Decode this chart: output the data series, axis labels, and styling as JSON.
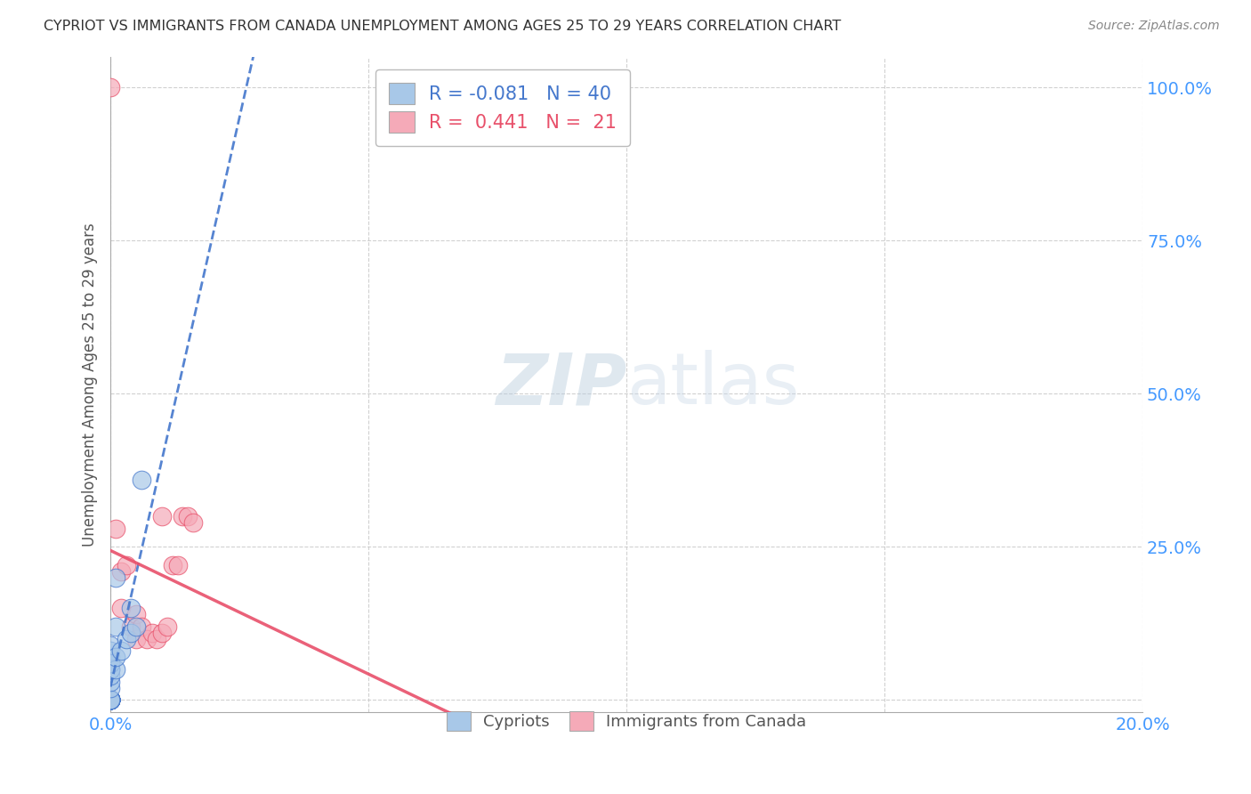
{
  "title": "CYPRIOT VS IMMIGRANTS FROM CANADA UNEMPLOYMENT AMONG AGES 25 TO 29 YEARS CORRELATION CHART",
  "source": "Source: ZipAtlas.com",
  "ylabel": "Unemployment Among Ages 25 to 29 years",
  "xlim": [
    0.0,
    0.2
  ],
  "ylim": [
    -0.02,
    1.05
  ],
  "x_ticks": [
    0.0,
    0.05,
    0.1,
    0.15,
    0.2
  ],
  "x_tick_labels": [
    "0.0%",
    "",
    "",
    "",
    "20.0%"
  ],
  "y_ticks": [
    0.0,
    0.25,
    0.5,
    0.75,
    1.0
  ],
  "y_tick_labels": [
    "",
    "25.0%",
    "50.0%",
    "75.0%",
    "100.0%"
  ],
  "watermark": "ZIPatlas",
  "cypriot_color": "#a8c8e8",
  "immigrant_color": "#f5aab8",
  "trendline_cypriot_color": "#4477cc",
  "trendline_immigrant_color": "#e8506a",
  "cypriot_scatter_x": [
    0.0,
    0.0,
    0.0,
    0.0,
    0.0,
    0.0,
    0.0,
    0.0,
    0.0,
    0.0,
    0.0,
    0.0,
    0.0,
    0.0,
    0.0,
    0.0,
    0.0,
    0.0,
    0.0,
    0.0,
    0.0,
    0.0,
    0.0,
    0.0,
    0.0,
    0.0,
    0.0,
    0.0,
    0.0,
    0.0,
    0.001,
    0.001,
    0.001,
    0.001,
    0.002,
    0.003,
    0.004,
    0.004,
    0.005,
    0.006
  ],
  "cypriot_scatter_y": [
    0.0,
    0.0,
    0.0,
    0.0,
    0.0,
    0.0,
    0.0,
    0.0,
    0.0,
    0.0,
    0.0,
    0.0,
    0.0,
    0.0,
    0.0,
    0.0,
    0.0,
    0.0,
    0.0,
    0.0,
    0.02,
    0.03,
    0.04,
    0.05,
    0.06,
    0.07,
    0.08,
    0.09,
    0.05,
    0.06,
    0.05,
    0.07,
    0.12,
    0.2,
    0.08,
    0.1,
    0.11,
    0.15,
    0.12,
    0.36
  ],
  "immigrant_scatter_x": [
    0.0,
    0.0,
    0.001,
    0.002,
    0.002,
    0.003,
    0.004,
    0.005,
    0.005,
    0.006,
    0.007,
    0.008,
    0.009,
    0.01,
    0.01,
    0.011,
    0.012,
    0.013,
    0.014,
    0.015,
    0.016
  ],
  "immigrant_scatter_y": [
    1.0,
    0.0,
    0.28,
    0.21,
    0.15,
    0.22,
    0.12,
    0.14,
    0.1,
    0.12,
    0.1,
    0.11,
    0.1,
    0.11,
    0.3,
    0.12,
    0.22,
    0.22,
    0.3,
    0.3,
    0.29
  ],
  "grid_color": "#cccccc",
  "background_color": "#ffffff",
  "tick_color": "#4499ff"
}
